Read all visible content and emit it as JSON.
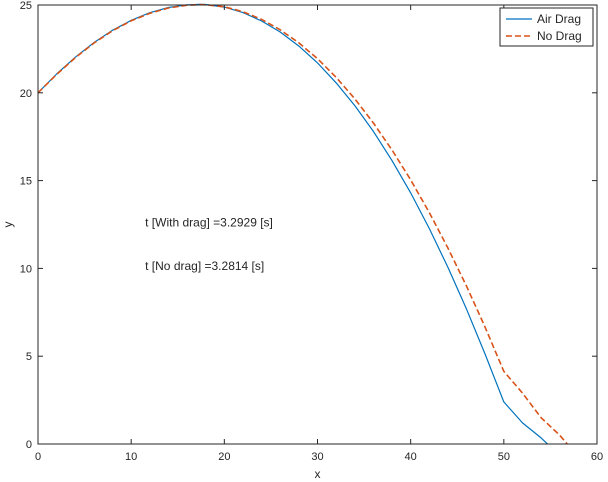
{
  "chart_data": {
    "type": "line",
    "title": "",
    "xlabel": "x",
    "ylabel": "y",
    "xlim": [
      0,
      60
    ],
    "ylim": [
      0,
      25
    ],
    "xticks": [
      0,
      10,
      20,
      30,
      40,
      50,
      60
    ],
    "yticks": [
      0,
      5,
      10,
      15,
      20,
      25
    ],
    "grid": false,
    "legend_position": "top-right",
    "series": [
      {
        "name": "Air Drag",
        "color": "#0072BD",
        "style": "solid",
        "x": [
          0,
          2,
          4,
          6,
          8,
          10,
          12,
          14,
          16,
          17.3,
          18,
          20,
          22,
          24,
          26,
          28,
          30,
          32,
          34,
          36,
          38,
          40,
          42,
          44,
          46,
          48,
          50,
          52,
          54,
          54.7
        ],
        "y": [
          20.0,
          21.07,
          22.03,
          22.86,
          23.56,
          24.13,
          24.56,
          24.86,
          25.01,
          25.04,
          25.03,
          24.88,
          24.57,
          24.09,
          23.46,
          22.66,
          21.7,
          20.57,
          19.27,
          17.8,
          16.14,
          14.3,
          12.27,
          10.06,
          7.67,
          5.1,
          2.4,
          1.2,
          0.35,
          0.0
        ]
      },
      {
        "name": "No Drag",
        "color": "#D95319",
        "style": "dashed",
        "x": [
          0,
          2,
          4,
          6,
          8,
          10,
          12,
          14,
          16,
          17.4,
          18,
          20,
          22,
          24,
          26,
          28,
          30,
          32,
          34,
          36,
          38,
          40,
          42,
          44,
          46,
          48,
          50,
          52,
          54,
          56,
          56.8
        ],
        "y": [
          20.0,
          21.04,
          22.0,
          22.83,
          23.53,
          24.1,
          24.53,
          24.83,
          24.99,
          25.02,
          25.01,
          24.9,
          24.62,
          24.18,
          23.59,
          22.84,
          21.94,
          20.88,
          19.66,
          18.28,
          16.74,
          15.04,
          13.18,
          11.16,
          8.98,
          6.64,
          4.14,
          2.9,
          1.5,
          0.5,
          0.0
        ]
      }
    ],
    "annotations": [
      {
        "text": "t [With drag] =3.2929 [s]",
        "x": 11.5,
        "y": 12.4
      },
      {
        "text": "t [No drag] =3.2814 [s]",
        "x": 11.5,
        "y": 9.9
      }
    ]
  }
}
